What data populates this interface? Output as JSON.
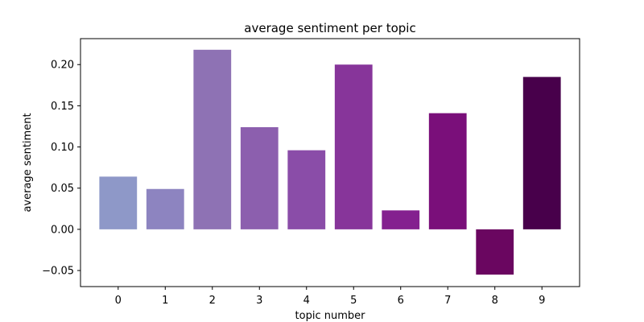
{
  "chart_data": {
    "type": "bar",
    "title": "average sentiment per topic",
    "xlabel": "topic number",
    "ylabel": "average sentiment",
    "categories": [
      "0",
      "1",
      "2",
      "3",
      "4",
      "5",
      "6",
      "7",
      "8",
      "9"
    ],
    "values": [
      0.064,
      0.049,
      0.218,
      0.124,
      0.096,
      0.2,
      0.023,
      0.141,
      -0.055,
      0.185
    ],
    "colors": [
      "#8e98c8",
      "#8d84c0",
      "#8e72b4",
      "#8c5fae",
      "#8a4da8",
      "#87359a",
      "#84208f",
      "#7a0f7a",
      "#6a0660",
      "#48004b"
    ],
    "ylim": [
      -0.0695,
      0.2315
    ],
    "yticks": [
      -0.05,
      0.0,
      0.05,
      0.1,
      0.15,
      0.2
    ],
    "ytick_labels": [
      "−0.05",
      "0.00",
      "0.05",
      "0.10",
      "0.15",
      "0.20"
    ],
    "grid": false,
    "legend": false
  }
}
